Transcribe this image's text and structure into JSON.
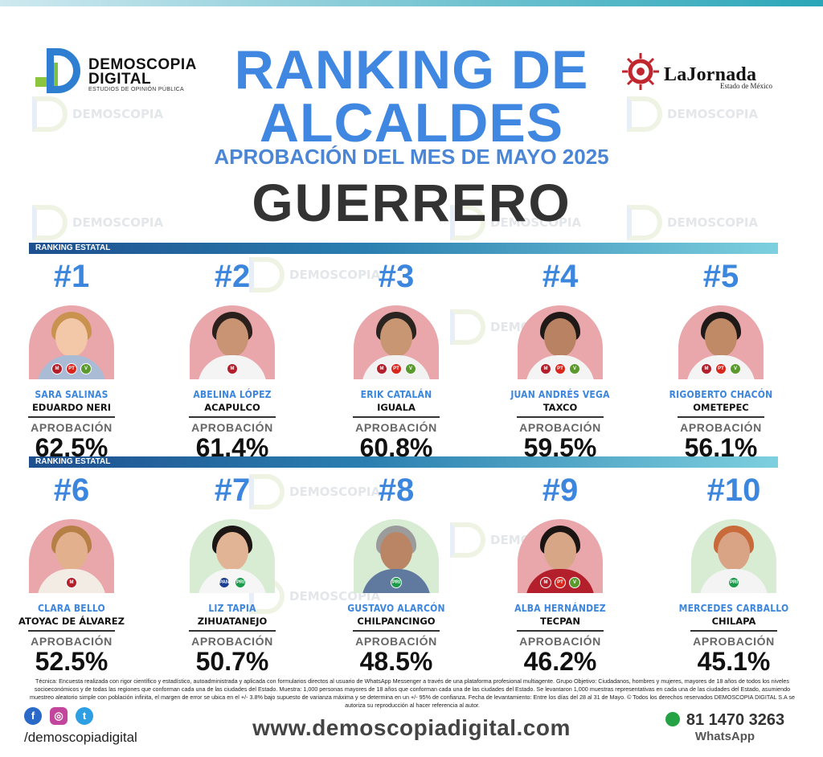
{
  "header": {
    "brand_line1": "DEMOSCOPIA",
    "brand_line2": "DIGITAL",
    "brand_tagline": "ESTUDIOS DE OPINIÓN PÚBLICA",
    "title_line1": "RANKING DE",
    "title_line2": "ALCALDES",
    "subtitle": "APROBACIÓN DEL MES DE MAYO 2025",
    "state": "GUERRERO",
    "partner_name": "LaJornada",
    "partner_sub": "Estado de México"
  },
  "ribbon_label": "RANKING ESTATAL",
  "approval_label": "APROBACIÓN",
  "colors": {
    "accent_blue": "#3c86de",
    "morena": "#b3202c",
    "pt": "#d9261c",
    "pvem": "#5a9a2d",
    "pri": "#1b9a49",
    "pan": "#1e3f8f"
  },
  "rankings": [
    {
      "rank": "#1",
      "name": "SARA SALINAS",
      "municipality": "EDUARDO NERI",
      "approval": "62.5%"
    },
    {
      "rank": "#2",
      "name": "ABELINA LÓPEZ",
      "municipality": "ACAPULCO",
      "approval": "61.4%"
    },
    {
      "rank": "#3",
      "name": "ERIK CATALÁN",
      "municipality": "IGUALA",
      "approval": "60.8%"
    },
    {
      "rank": "#4",
      "name": "JUAN ANDRÉS VEGA",
      "municipality": "TAXCO",
      "approval": "59.5%"
    },
    {
      "rank": "#5",
      "name": "RIGOBERTO CHACÓN",
      "municipality": "OMETEPEC",
      "approval": "56.1%"
    },
    {
      "rank": "#6",
      "name": "CLARA BELLO",
      "municipality": "ATOYAC DE ÁLVAREZ",
      "approval": "52.5%"
    },
    {
      "rank": "#7",
      "name": "LIZ TAPIA",
      "municipality": "ZIHUATANEJO",
      "approval": "50.7%"
    },
    {
      "rank": "#8",
      "name": "GUSTAVO ALARCÓN",
      "municipality": "CHILPANCINGO",
      "approval": "48.5%"
    },
    {
      "rank": "#9",
      "name": "ALBA HERNÁNDEZ",
      "municipality": "TECPAN",
      "approval": "46.2%"
    },
    {
      "rank": "#10",
      "name": "MERCEDES CARBALLO",
      "municipality": "CHILAPA",
      "approval": "45.1%"
    }
  ],
  "footer": {
    "methodology": "Técnica: Encuesta realizada con rigor científico y estadístico, autoadministrada y aplicada con formularios directos al usuario de WhatsApp Messenger a través de una plataforma profesional multiagente. Grupo Objetivo: Ciudadanos, hombres y mujeres, mayores de 18 años de todos los niveles socioeconómicos y de todas las regiones que conforman cada una de las ciudades del Estado. Muestra: 1,000 personas mayores de 18 años que conforman cada una de las ciudades del Estado. Se levantaron 1,000 muestras representativas en cada una de las ciudades del Estado, asumiendo muestreo aleatorio simple con población infinita, el margen de error se ubica en el +/- 3.8% bajo supuesto de varianza máxima y se determina en un +/- 95% de confianza. Fecha de levantamiento: Entre los días del 28 al 31 de Mayo. © Todos los derechos reservados DEMOSCOPIA DIGITAL S.A se autoriza su reproducción al hacer referencia al autor.",
    "social_handle": "/demoscopiadigital",
    "website": "www.demoscopiadigital.com",
    "phone": "81 1470 3263",
    "whatsapp_label": "WhatsApp"
  }
}
